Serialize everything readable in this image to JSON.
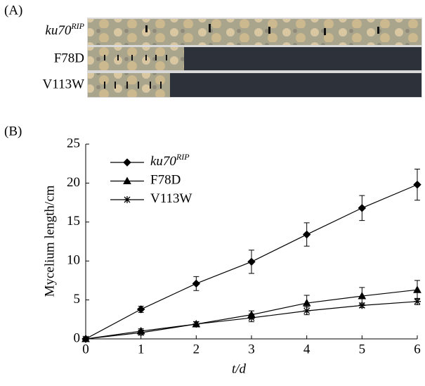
{
  "panel_a": {
    "label": "(A)",
    "rows": [
      {
        "name": "ku70",
        "name_superscript": "RIP"
      },
      {
        "name": "F78D"
      },
      {
        "name": "V113W"
      }
    ]
  },
  "chart_data": {
    "type": "line",
    "panel_label": "(B)",
    "x_label": "t/d",
    "y_label": "Mycelium length/cm",
    "x": [
      0,
      1,
      2,
      3,
      4,
      5,
      6
    ],
    "series": [
      {
        "name": "ku70",
        "name_superscript": "RIP",
        "color": "#000000",
        "marker": "diamond",
        "values": [
          0,
          3.8,
          7.1,
          9.9,
          13.4,
          16.8,
          19.8
        ],
        "errors": [
          0,
          0.4,
          0.9,
          1.5,
          1.5,
          1.6,
          2.0
        ]
      },
      {
        "name": "F78D",
        "color": "#000000",
        "marker": "triangle",
        "values": [
          0,
          1.0,
          1.9,
          3.1,
          4.6,
          5.5,
          6.3
        ],
        "errors": [
          0,
          0.3,
          0.3,
          0.5,
          1.0,
          1.1,
          1.2
        ]
      },
      {
        "name": "V113W",
        "color": "#000000",
        "marker": "star",
        "values": [
          0,
          0.8,
          1.9,
          2.7,
          3.6,
          4.3,
          4.8
        ],
        "errors": [
          0,
          0.3,
          0.3,
          0.5,
          0.5,
          0.3,
          0.4
        ]
      }
    ],
    "xlim": [
      0,
      6
    ],
    "xticks": [
      0,
      1,
      2,
      3,
      4,
      5,
      6
    ],
    "ylim": [
      0,
      25
    ],
    "yticks": [
      0,
      5,
      10,
      15,
      20,
      25
    ],
    "grid": false,
    "legend": "top-left"
  }
}
